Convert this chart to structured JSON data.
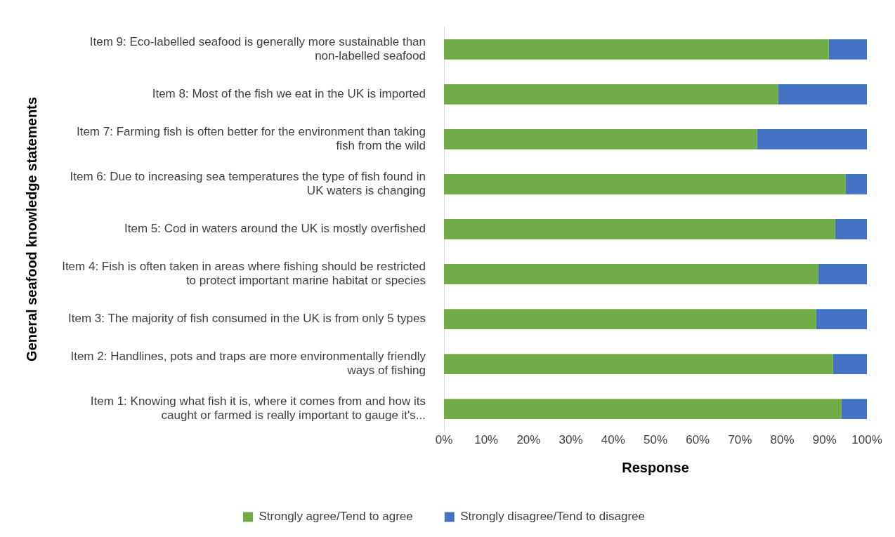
{
  "chart_data": {
    "type": "bar",
    "orientation": "horizontal",
    "stacked": true,
    "categories": [
      "Item 9: Eco-labelled seafood is generally more sustainable than non-labelled seafood",
      "Item 8: Most of the fish we eat in the UK is imported",
      "Item 7: Farming fish is often better for the environment than taking fish from the wild",
      "Item 6: Due to increasing sea temperatures the type of fish found in UK waters is changing",
      "Item 5: Cod in waters around the UK is mostly overfished",
      "Item 4: Fish is often taken in areas where fishing should be restricted to protect important marine habitat or species",
      "Item 3: The majority of fish consumed in the UK is from only 5 types",
      "Item 2: Handlines, pots and traps are more environmentally friendly ways of fishing",
      "Item 1: Knowing what fish it is, where it comes from and how its caught or farmed is really important to gauge it's..."
    ],
    "series": [
      {
        "name": "Strongly agree/Tend to agree",
        "color": "#70ad47",
        "values": [
          91,
          79,
          74,
          95,
          92.5,
          88.5,
          88,
          92,
          94
        ]
      },
      {
        "name": "Strongly disagree/Tend to disagree",
        "color": "#4472c4",
        "values": [
          9,
          21,
          26,
          5,
          7.5,
          11.5,
          12,
          8,
          6
        ]
      }
    ],
    "xlim": [
      0,
      100
    ],
    "xticks": [
      {
        "value": 0,
        "label": "0%"
      },
      {
        "value": 10,
        "label": "10%"
      },
      {
        "value": 20,
        "label": "20%"
      },
      {
        "value": 30,
        "label": "30%"
      },
      {
        "value": 40,
        "label": "40%"
      },
      {
        "value": 50,
        "label": "50%"
      },
      {
        "value": 60,
        "label": "60%"
      },
      {
        "value": 70,
        "label": "70%"
      },
      {
        "value": 80,
        "label": "80%"
      },
      {
        "value": 90,
        "label": "90%"
      },
      {
        "value": 100,
        "label": "100%"
      }
    ],
    "xlabel": "Response",
    "ylabel": "General seafood knowledge statements",
    "legend": "bottom",
    "grid": false
  }
}
